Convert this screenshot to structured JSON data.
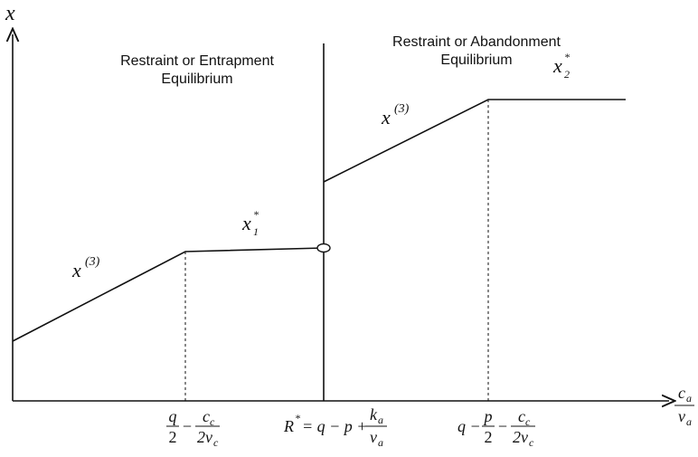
{
  "y_axis_label": "x",
  "x_axis_label": {
    "num": {
      "base": "c",
      "sub": "a"
    },
    "den": {
      "base": "v",
      "sub": "a"
    }
  },
  "regions": [
    {
      "lines": [
        "Restraint or Entrapment",
        "Equilibrium"
      ]
    },
    {
      "lines": [
        "Restraint or Abandonment",
        "Equilibrium"
      ]
    }
  ],
  "curve_labels": [
    {
      "base": "x",
      "sup": "(3)"
    },
    {
      "base": "x",
      "sub": "1",
      "sup": "*"
    },
    {
      "base": "x",
      "sup": "(3)"
    },
    {
      "base": "x",
      "sub": "2",
      "sup": "*"
    }
  ],
  "x_ticks": [
    {
      "t1": {
        "num": "q",
        "den": "2"
      },
      "op": "−",
      "t2": {
        "num": {
          "base": "c",
          "sub": "c"
        },
        "den": {
          "base": "2v",
          "sub": "c"
        }
      }
    },
    {
      "lhs": {
        "base": "R",
        "sup": "*"
      },
      "rhs": "= q − p +",
      "frac": {
        "num": {
          "base": "k",
          "sub": "a"
        },
        "den": {
          "base": "v",
          "sub": "a"
        }
      }
    },
    {
      "lead": "q −",
      "t1": {
        "num": "p",
        "den": "2"
      },
      "op": "−",
      "t2": {
        "num": {
          "base": "c",
          "sub": "c"
        },
        "den": {
          "base": "2v",
          "sub": "c"
        }
      }
    }
  ]
}
